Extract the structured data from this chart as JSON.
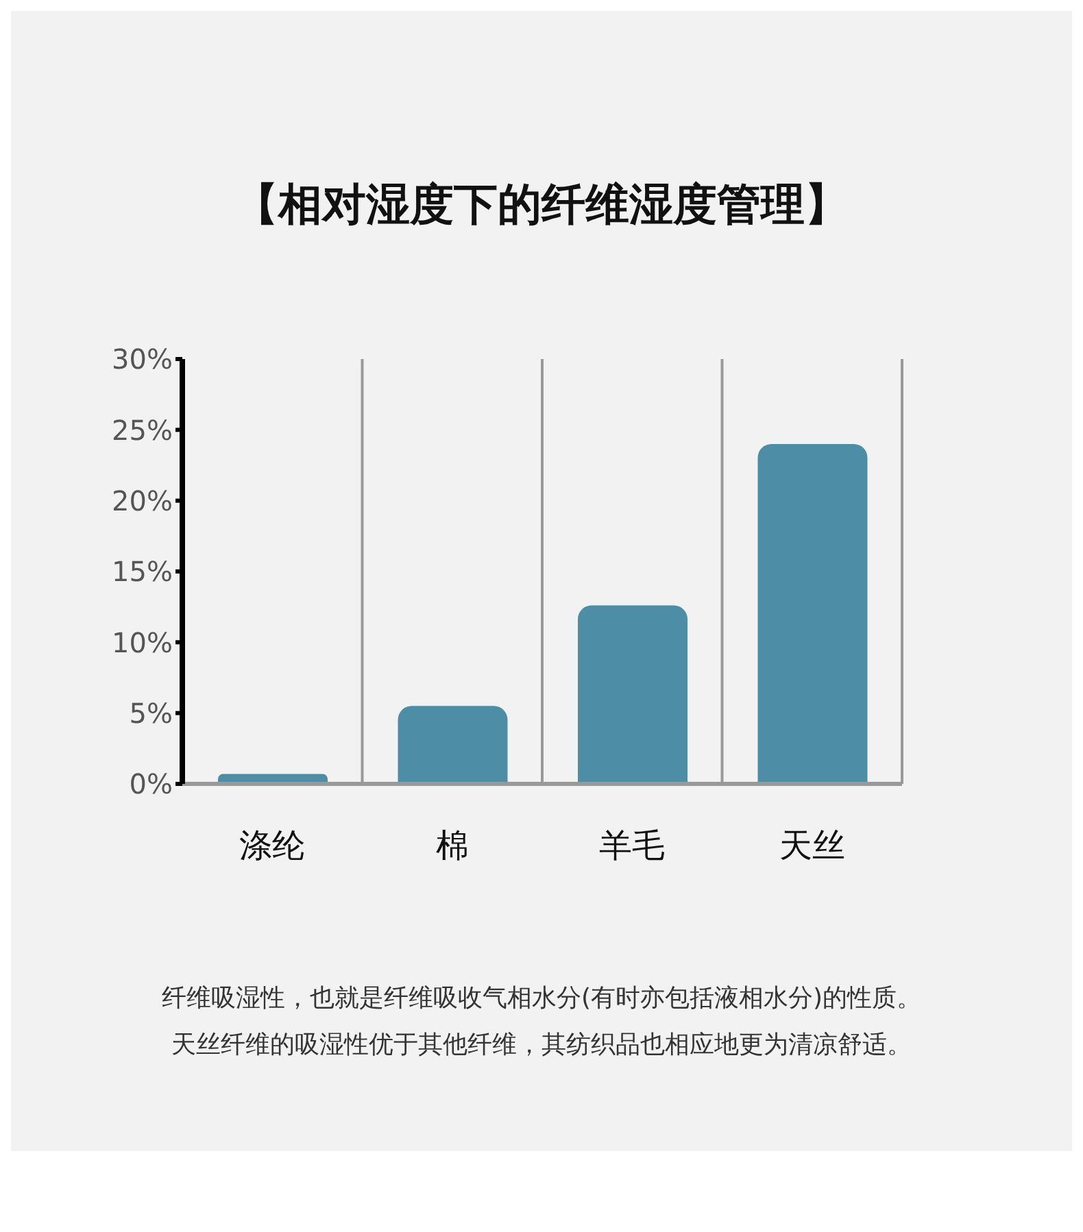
{
  "chart_data": {
    "type": "bar",
    "title": "【相对湿度下的纤维湿度管理】",
    "categories": [
      "涤纶",
      "棉",
      "羊毛",
      "天丝"
    ],
    "values": [
      0.7,
      5.5,
      12.6,
      24
    ],
    "color": "#4d8ea6",
    "ylim": [
      0,
      30
    ],
    "yticks": [
      {
        "value": 0,
        "label": "0%"
      },
      {
        "value": 5,
        "label": "5%"
      },
      {
        "value": 10,
        "label": "10%"
      },
      {
        "value": 15,
        "label": "15%"
      },
      {
        "value": 20,
        "label": "20%"
      },
      {
        "value": 25,
        "label": "25%"
      },
      {
        "value": 30,
        "label": "30%"
      }
    ],
    "grid": "x",
    "annotations": [
      "纤维吸湿性，也就是纤维吸收气相水分(有时亦包括液相水分)的性质。",
      "天丝纤维的吸湿性优于其他纤维，其纺织品也相应地更为清凉舒适。"
    ]
  }
}
